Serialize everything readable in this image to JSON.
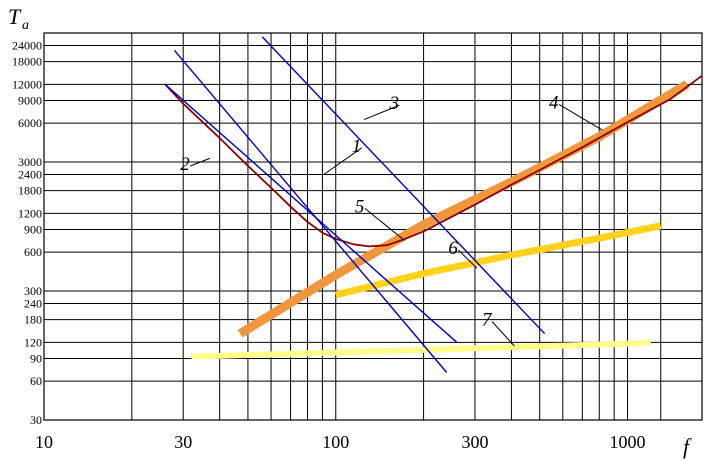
{
  "chart_data": {
    "type": "line",
    "x_scale": "log",
    "y_scale": "log",
    "xlim": [
      10,
      1800
    ],
    "ylim": [
      30,
      30000
    ],
    "grid": true,
    "ylabel_main": "T",
    "ylabel_sub": "a",
    "xlabel": "f",
    "x_ticks": [
      "10",
      "30",
      "100",
      "300",
      "1000"
    ],
    "x_tick_values": [
      10,
      30,
      100,
      300,
      1000
    ],
    "y_ticks": [
      "24000",
      "18000",
      "12000",
      "9000",
      "6000",
      "3000",
      "2400",
      "1800",
      "1200",
      "900",
      "600",
      "300",
      "240",
      "180",
      "120",
      "90",
      "60",
      "30"
    ],
    "y_tick_values": [
      24000,
      18000,
      12000,
      9000,
      6000,
      3000,
      2400,
      1800,
      1200,
      900,
      600,
      300,
      240,
      180,
      120,
      90,
      60,
      30
    ],
    "series": [
      {
        "name": "1",
        "color": "#0000cc",
        "width": 1.4,
        "x": [
          28,
          240
        ],
        "y": [
          22000,
          70
        ]
      },
      {
        "name": "2",
        "color": "#0000cc",
        "width": 1.4,
        "x": [
          26,
          260
        ],
        "y": [
          12000,
          120
        ]
      },
      {
        "name": "3",
        "color": "#0000cc",
        "width": 1.4,
        "x": [
          56,
          520
        ],
        "y": [
          28000,
          140
        ]
      },
      {
        "name": "4",
        "color": "#8b0000",
        "width": 1.8,
        "x": [
          26,
          30,
          40,
          50,
          60,
          70,
          80,
          90,
          100,
          115,
          130,
          150,
          170,
          200,
          250,
          300,
          400,
          500,
          700,
          1000,
          1400,
          1800
        ],
        "y": [
          12000,
          8500,
          4600,
          2800,
          1900,
          1350,
          1030,
          850,
          760,
          690,
          665,
          680,
          750,
          870,
          1130,
          1400,
          2000,
          2600,
          3900,
          6100,
          9200,
          14000
        ]
      },
      {
        "name": "5",
        "color": "#f0963c",
        "width": 9,
        "x": [
          47,
          100,
          200,
          400,
          800,
          1600
        ],
        "y": [
          140,
          400,
          980,
          2100,
          4700,
          12000
        ]
      },
      {
        "name": "6",
        "color": "#ffd21e",
        "width": 7,
        "x": [
          100,
          200,
          400,
          800,
          1300
        ],
        "y": [
          280,
          410,
          570,
          770,
          960
        ]
      },
      {
        "name": "7",
        "color": "#ffff8c",
        "width": 6,
        "x": [
          32,
          100,
          300,
          1000,
          1200
        ],
        "y": [
          93,
          100,
          108,
          117,
          120
        ]
      }
    ],
    "labels": [
      {
        "text": "1",
        "x": 118,
        "y": 3600,
        "to_x": 91,
        "to_y": 2400
      },
      {
        "text": "2",
        "x": 30.5,
        "y": 2600,
        "to_x": 37,
        "to_y": 3200
      },
      {
        "text": "3",
        "x": 159,
        "y": 7700,
        "to_x": 125,
        "to_y": 6400
      },
      {
        "text": "4",
        "x": 560,
        "y": 7800,
        "to_x": 820,
        "to_y": 5300
      },
      {
        "text": "5",
        "x": 121,
        "y": 1220,
        "to_x": 172,
        "to_y": 740
      },
      {
        "text": "6",
        "x": 253,
        "y": 580,
        "to_x": 305,
        "to_y": 450
      },
      {
        "text": "7",
        "x": 330,
        "y": 162,
        "to_x": 410,
        "to_y": 112
      }
    ]
  }
}
